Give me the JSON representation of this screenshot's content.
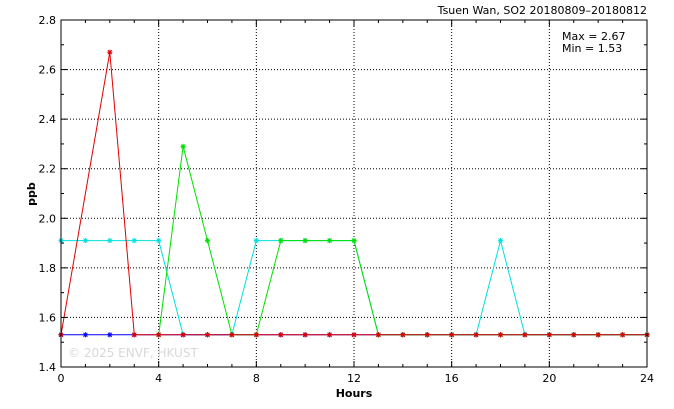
{
  "chart_data": {
    "type": "line",
    "title": "Tsuen Wan, SO2 20180809–20180812",
    "xlabel": "Hours",
    "ylabel": "ppb",
    "xlim": [
      0,
      24
    ],
    "ylim": [
      1.4,
      2.8
    ],
    "xticks": [
      0,
      4,
      8,
      12,
      16,
      20,
      24
    ],
    "yticks": [
      1.4,
      1.6,
      1.8,
      2.0,
      2.2,
      2.4,
      2.6,
      2.8
    ],
    "x_minor_step": 1,
    "y_minor_step": 0.1,
    "grid": true,
    "stats": {
      "max_label": "Max = 2.67",
      "min_label": "Min = 1.53"
    },
    "watermark": "© 2025  ENVF, HKUST",
    "series": [
      {
        "color": "#00e0e0",
        "x": [
          0,
          1,
          2,
          3,
          4,
          5,
          6,
          7,
          8,
          9,
          10,
          11,
          12,
          13,
          14,
          15,
          16,
          17,
          18,
          19,
          20,
          21,
          22,
          23,
          24
        ],
        "y": [
          1.91,
          1.91,
          1.91,
          1.91,
          1.91,
          1.53,
          1.53,
          1.53,
          1.91,
          1.91,
          1.91,
          1.91,
          1.91,
          1.53,
          1.53,
          1.53,
          1.53,
          1.53,
          1.91,
          1.53,
          1.53,
          1.53,
          1.53,
          1.53,
          1.53
        ]
      },
      {
        "color": "#0000ff",
        "x": [
          0,
          1,
          2,
          3,
          4,
          5,
          6,
          7,
          8,
          9,
          10,
          11,
          12,
          13,
          14,
          15,
          16,
          17,
          18,
          19,
          20,
          21,
          22,
          23,
          24
        ],
        "y": [
          1.53,
          1.53,
          1.53,
          1.53,
          1.53,
          1.53,
          1.53,
          1.53,
          1.53,
          1.53,
          1.53,
          1.53,
          1.53,
          1.53,
          1.53,
          1.53,
          1.53,
          1.53,
          1.53,
          1.53,
          1.53,
          1.53,
          1.53,
          1.53,
          1.53
        ]
      },
      {
        "color": "#00e000",
        "x": [
          4,
          5,
          6,
          7,
          8,
          9,
          10,
          11,
          12,
          13,
          14,
          15,
          16,
          17,
          18,
          19,
          20,
          21,
          22,
          23,
          24
        ],
        "y": [
          1.53,
          2.29,
          1.91,
          1.53,
          1.53,
          1.91,
          1.91,
          1.91,
          1.91,
          1.53,
          1.53,
          1.53,
          1.53,
          1.53,
          1.53,
          1.53,
          1.53,
          1.53,
          1.53,
          1.53,
          1.53
        ]
      },
      {
        "color": "#e00000",
        "x": [
          0,
          2,
          3,
          4,
          5,
          6,
          7,
          8,
          9,
          10,
          11,
          12,
          13,
          14,
          15,
          16,
          17,
          18,
          19,
          20,
          21,
          22,
          23,
          24
        ],
        "y": [
          1.53,
          2.67,
          1.53,
          1.53,
          1.53,
          1.53,
          1.53,
          1.53,
          1.53,
          1.53,
          1.53,
          1.53,
          1.53,
          1.53,
          1.53,
          1.53,
          1.53,
          1.53,
          1.53,
          1.53,
          1.53,
          1.53,
          1.53,
          1.53
        ]
      }
    ]
  }
}
